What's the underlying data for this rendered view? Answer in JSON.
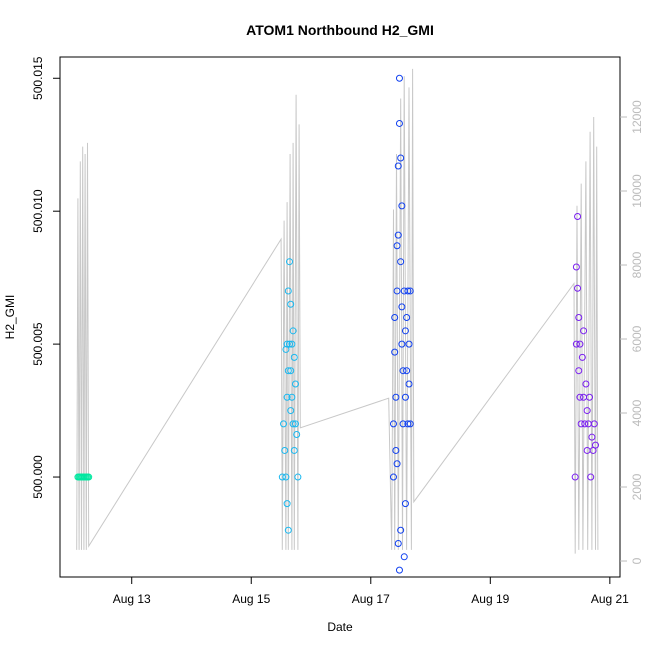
{
  "chart_data": {
    "type": "scatter",
    "title": "ATOM1 Northbound H2_GMI",
    "x_label": "Date",
    "y_label": "H2_GMI",
    "xlim": [
      11.8,
      21.17
    ],
    "xticks": [
      {
        "value": 13,
        "label": "Aug 13"
      },
      {
        "value": 15,
        "label": "Aug 15"
      },
      {
        "value": 17,
        "label": "Aug 17"
      },
      {
        "value": 19,
        "label": "Aug 19"
      },
      {
        "value": 21,
        "label": "Aug 21"
      }
    ],
    "ylim": [
      499.99624,
      500.0158
    ],
    "yticks": [
      {
        "value": 500.0,
        "label": "500.000"
      },
      {
        "value": 500.005,
        "label": "500.005"
      },
      {
        "value": 500.01,
        "label": "500.010"
      },
      {
        "value": 500.015,
        "label": "500.015"
      }
    ],
    "y2lim": [
      -432,
      13622
    ],
    "y2ticks": [
      0,
      2000,
      4000,
      6000,
      8000,
      10000,
      12000
    ],
    "y2_color": "#bbbbbb",
    "series": [
      {
        "color": "#00e8a0",
        "marker": "circle",
        "x": [
          12.1,
          12.12,
          12.14,
          12.16,
          12.18,
          12.2,
          12.22,
          12.24,
          12.26,
          12.28
        ],
        "values": [
          500,
          500,
          500,
          500,
          500,
          500,
          500,
          500,
          500,
          500
        ]
      },
      {
        "color": "#19b8f0",
        "marker": "circle",
        "x": [
          15.52,
          15.54,
          15.56,
          15.58,
          15.6,
          15.6,
          15.62,
          15.62,
          15.64,
          15.64,
          15.66,
          15.66,
          15.68,
          15.68,
          15.7,
          15.7,
          15.72,
          15.72,
          15.74,
          15.74,
          15.76,
          15.78,
          15.62,
          15.6,
          15.66,
          15.58
        ],
        "values": [
          500.0,
          500.002,
          500.001,
          500.0,
          500.003,
          500.005,
          500.004,
          499.998,
          500.005,
          500.0081,
          500.0065,
          500.004,
          500.003,
          500.005,
          500.0055,
          500.002,
          500.0045,
          500.001,
          500.0035,
          500.002,
          500.0016,
          500.0,
          500.007,
          499.999,
          500.0025,
          500.0048
        ]
      },
      {
        "color": "#1040f0",
        "marker": "circle",
        "x": [
          17.38,
          17.38,
          17.4,
          17.4,
          17.42,
          17.42,
          17.44,
          17.44,
          17.46,
          17.46,
          17.48,
          17.48,
          17.48,
          17.5,
          17.5,
          17.5,
          17.52,
          17.52,
          17.54,
          17.54,
          17.56,
          17.56,
          17.58,
          17.58,
          17.6,
          17.6,
          17.62,
          17.62,
          17.64,
          17.64,
          17.66,
          17.66,
          17.52,
          17.46,
          17.58,
          17.44
        ],
        "values": [
          500.0,
          500.002,
          500.006,
          500.0047,
          500.003,
          500.001,
          500.007,
          500.0087,
          500.0091,
          500.0117,
          500.015,
          500.0133,
          499.9965,
          500.012,
          500.0081,
          499.998,
          500.0064,
          500.005,
          500.004,
          500.002,
          500.007,
          499.997,
          500.0055,
          500.003,
          500.006,
          500.004,
          500.007,
          500.002,
          500.005,
          500.0035,
          500.007,
          500.002,
          500.0102,
          499.9975,
          499.999,
          500.0005
        ]
      },
      {
        "color": "#7a1ff0",
        "marker": "circle",
        "x": [
          20.42,
          20.44,
          20.44,
          20.46,
          20.46,
          20.48,
          20.48,
          20.5,
          20.5,
          20.52,
          20.54,
          20.56,
          20.58,
          20.6,
          20.62,
          20.64,
          20.66,
          20.68,
          20.7,
          20.72,
          20.74,
          20.76,
          20.56,
          20.62
        ],
        "values": [
          500.0,
          500.0079,
          500.005,
          500.0098,
          500.0071,
          500.006,
          500.004,
          500.003,
          500.005,
          500.002,
          500.0045,
          500.003,
          500.002,
          500.0035,
          500.001,
          500.002,
          500.003,
          500.0,
          500.0015,
          500.001,
          500.002,
          500.0012,
          500.0055,
          500.0025
        ]
      },
      {
        "color": "#c8c8c8",
        "marker": "line",
        "axis": "y2",
        "x": [
          12.08,
          12.1,
          12.12,
          12.14,
          12.16,
          12.18,
          12.2,
          12.22,
          12.24,
          12.26,
          12.28,
          15.5,
          15.52,
          15.55,
          15.58,
          15.6,
          15.62,
          15.65,
          15.68,
          15.7,
          15.72,
          15.75,
          15.78,
          15.8,
          15.82,
          17.3,
          17.35,
          17.38,
          17.4,
          17.43,
          17.46,
          17.5,
          17.53,
          17.56,
          17.6,
          17.64,
          17.68,
          17.7,
          17.72,
          20.4,
          20.42,
          20.45,
          20.48,
          20.52,
          20.55,
          20.6,
          20.63,
          20.67,
          20.7,
          20.73,
          20.76,
          20.78,
          20.8
        ],
        "values": [
          300,
          9800,
          300,
          10800,
          300,
          11200,
          300,
          11000,
          300,
          11300,
          400,
          8700,
          300,
          9200,
          300,
          9700,
          300,
          11000,
          300,
          11300,
          300,
          12600,
          300,
          11800,
          3600,
          4400,
          300,
          9500,
          300,
          11000,
          300,
          12500,
          300,
          13100,
          300,
          12800,
          300,
          13300,
          1600,
          7500,
          200,
          9600,
          300,
          10200,
          300,
          10800,
          300,
          11600,
          300,
          12000,
          300,
          11200,
          300
        ]
      }
    ]
  }
}
